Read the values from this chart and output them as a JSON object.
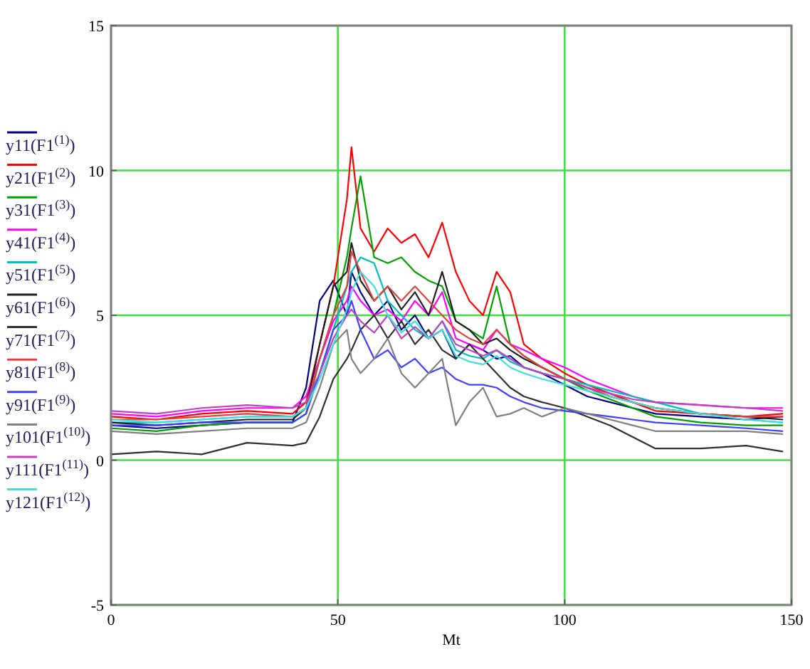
{
  "chart_data": {
    "type": "line",
    "xlabel": "Mt",
    "xlim": [
      0,
      150
    ],
    "xticks": [
      0,
      50,
      100,
      150
    ],
    "ylim": [
      -5,
      15
    ],
    "yticks": [
      -5,
      0,
      5,
      10,
      15
    ],
    "grid": true,
    "legend": "left",
    "marker": "none",
    "line_style": "solid",
    "x": [
      0,
      10,
      20,
      30,
      40,
      43,
      46,
      49,
      52,
      53,
      55,
      58,
      61,
      64,
      67,
      70,
      73,
      76,
      79,
      82,
      85,
      88,
      91,
      95,
      100,
      105,
      110,
      115,
      120,
      130,
      140,
      148
    ],
    "series": [
      {
        "name": "y11(F1$^{(1)}$)",
        "color": "#000080",
        "values": [
          1.2,
          1.1,
          1.2,
          1.3,
          1.3,
          2.5,
          5.5,
          6.2,
          5,
          6.5,
          5.8,
          5,
          5.5,
          4.5,
          5,
          4.2,
          4.5,
          3.5,
          4,
          3.8,
          3.5,
          3.6,
          3.2,
          3,
          2.6,
          2.2,
          2,
          1.8,
          1.6,
          1.5,
          1.4,
          1.5
        ]
      },
      {
        "name": "y21(F1$^{(2)}$)",
        "color": "#ff0000",
        "values": [
          1.5,
          1.4,
          1.6,
          1.7,
          1.6,
          2,
          4,
          6,
          9,
          10.8,
          8,
          7.2,
          8,
          7.5,
          7.8,
          7,
          8.2,
          6.5,
          5.5,
          5,
          6.5,
          5.8,
          4,
          3.5,
          3,
          2.6,
          2.3,
          2,
          1.7,
          1.6,
          1.5,
          1.6
        ]
      },
      {
        "name": "y31(F1$^{(3)}$)",
        "color": "#00a000",
        "values": [
          1.1,
          1.0,
          1.2,
          1.3,
          1.3,
          1.6,
          3.5,
          5,
          7,
          8,
          9.8,
          7,
          6.8,
          7,
          6.5,
          6.2,
          6,
          4.8,
          4.5,
          4.2,
          6,
          4,
          3.6,
          3.2,
          2.8,
          2.4,
          2.1,
          1.8,
          1.5,
          1.3,
          1.2,
          1.2
        ]
      },
      {
        "name": "y41(F1$^{(4)}$)",
        "color": "#ff00ff",
        "values": [
          1.6,
          1.5,
          1.7,
          1.8,
          1.8,
          2.2,
          3.5,
          4.8,
          5.5,
          6,
          5.5,
          5,
          5.2,
          4.8,
          5.5,
          5,
          5.8,
          4.2,
          4,
          3.8,
          4.5,
          4,
          3.8,
          3.5,
          3.2,
          2.8,
          2.5,
          2.2,
          2,
          1.9,
          1.8,
          1.8
        ]
      },
      {
        "name": "y51(F1$^{(5)}$)",
        "color": "#00c0c0",
        "values": [
          1.3,
          1.3,
          1.4,
          1.5,
          1.5,
          1.8,
          3,
          4.5,
          6,
          6.5,
          7,
          6.8,
          5.5,
          5,
          4.5,
          4.2,
          4.8,
          3.8,
          3.6,
          3.5,
          3.8,
          3.4,
          3.2,
          3,
          2.8,
          2.6,
          2.4,
          2.2,
          2,
          1.6,
          1.4,
          1.3
        ]
      },
      {
        "name": "y61(F1$^{(6)}$)",
        "color": "#202020",
        "values": [
          1.3,
          1.2,
          1.3,
          1.4,
          1.4,
          1.8,
          4,
          6,
          6.5,
          7.5,
          6.2,
          5.5,
          6,
          5.2,
          5.8,
          5,
          6.5,
          4.8,
          4.5,
          4,
          4.2,
          3.8,
          3.5,
          3.2,
          2.8,
          2.5,
          2.2,
          2,
          1.8,
          1.6,
          1.5,
          1.4
        ]
      },
      {
        "name": "y71(F1$^{(7)}$)",
        "color": "#303030",
        "values": [
          0.2,
          0.3,
          0.2,
          0.6,
          0.5,
          0.6,
          1.5,
          2.8,
          3.5,
          3.8,
          4.5,
          5,
          4.2,
          4.8,
          4,
          4.5,
          3.8,
          3.5,
          4,
          3.5,
          3,
          2.5,
          2.2,
          2,
          1.8,
          1.5,
          1.2,
          0.8,
          0.4,
          0.4,
          0.5,
          0.3
        ]
      },
      {
        "name": "y81(F1$^{(8)}$)",
        "color": "#e04040",
        "values": [
          1.4,
          1.4,
          1.5,
          1.6,
          1.5,
          1.8,
          3.5,
          5,
          6,
          7.2,
          6.5,
          5.5,
          6,
          5.5,
          6,
          5.5,
          5,
          4.5,
          4.2,
          4,
          4.5,
          4,
          3.6,
          3.2,
          2.8,
          2.5,
          2.2,
          2,
          1.8,
          1.6,
          1.5,
          1.5
        ]
      },
      {
        "name": "y91(F1$^{(9)}$)",
        "color": "#4040ff",
        "values": [
          1.2,
          1.2,
          1.3,
          1.3,
          1.3,
          1.6,
          3,
          4.5,
          5,
          5.5,
          4.5,
          3.5,
          3.8,
          3.2,
          3.5,
          3,
          3.2,
          2.8,
          2.6,
          2.6,
          2.5,
          2.2,
          2,
          1.8,
          1.7,
          1.6,
          1.5,
          1.4,
          1.3,
          1.2,
          1.1,
          1.0
        ]
      },
      {
        "name": "y101(F1$^{(10)}$)",
        "color": "#808080",
        "values": [
          1.0,
          0.9,
          1.0,
          1.1,
          1.1,
          1.3,
          2.5,
          4,
          4.5,
          3.5,
          3,
          3.5,
          4.2,
          3,
          2.5,
          3,
          3.5,
          1.2,
          2,
          2.5,
          1.5,
          1.6,
          1.8,
          1.5,
          1.8,
          1.6,
          1.4,
          1.2,
          1.0,
          1.0,
          1.0,
          0.9
        ]
      },
      {
        "name": "y111(F1$^{(11)}$)",
        "color": "#c040c0",
        "values": [
          1.7,
          1.6,
          1.8,
          1.9,
          1.8,
          2,
          3,
          4.2,
          5,
          5.2,
          4.8,
          4.4,
          5,
          4.2,
          4.6,
          4.2,
          4.8,
          4,
          3.8,
          3.6,
          3.8,
          3.5,
          3.2,
          3,
          2.8,
          2.5,
          2.3,
          2.1,
          2,
          1.9,
          1.8,
          1.7
        ]
      },
      {
        "name": "y121(F1$^{(12)}$)",
        "color": "#40e0e0",
        "values": [
          1.4,
          1.3,
          1.4,
          1.5,
          1.5,
          1.8,
          2.8,
          4,
          5.2,
          5.8,
          6.5,
          6,
          5,
          4.4,
          4.8,
          4.2,
          4.5,
          3.6,
          3.4,
          3.3,
          3.6,
          3.2,
          3,
          2.8,
          2.6,
          2.4,
          2.2,
          2,
          1.8,
          1.6,
          1.4,
          1.3
        ]
      }
    ]
  }
}
